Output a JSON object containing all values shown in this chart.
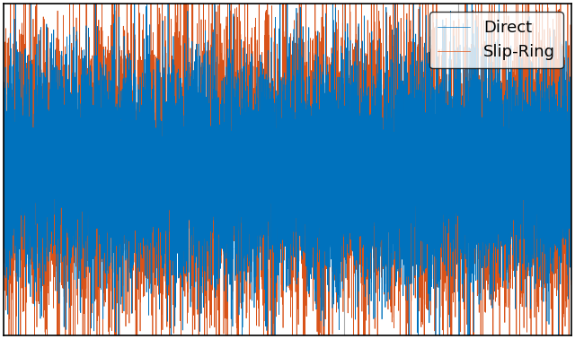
{
  "title": "",
  "xlabel": "",
  "ylabel": "",
  "direct_color": "#0072BD",
  "slipring_color": "#D95319",
  "legend_labels": [
    "Direct",
    "Slip-Ring"
  ],
  "legend_loc": "upper right",
  "figsize": [
    6.4,
    3.78
  ],
  "dpi": 100,
  "n_points": 10000,
  "seed": 42,
  "direct_amplitude": 0.35,
  "slipring_amplitude": 0.45,
  "background_color": "#ffffff",
  "grid_color": "#aaaaaa",
  "linewidth_direct": 0.5,
  "linewidth_slipring": 0.5,
  "xlim": [
    0,
    9999
  ],
  "ylim": [
    -1.05,
    1.05
  ],
  "n_grid_lines": 4,
  "legend_fontsize": 13
}
